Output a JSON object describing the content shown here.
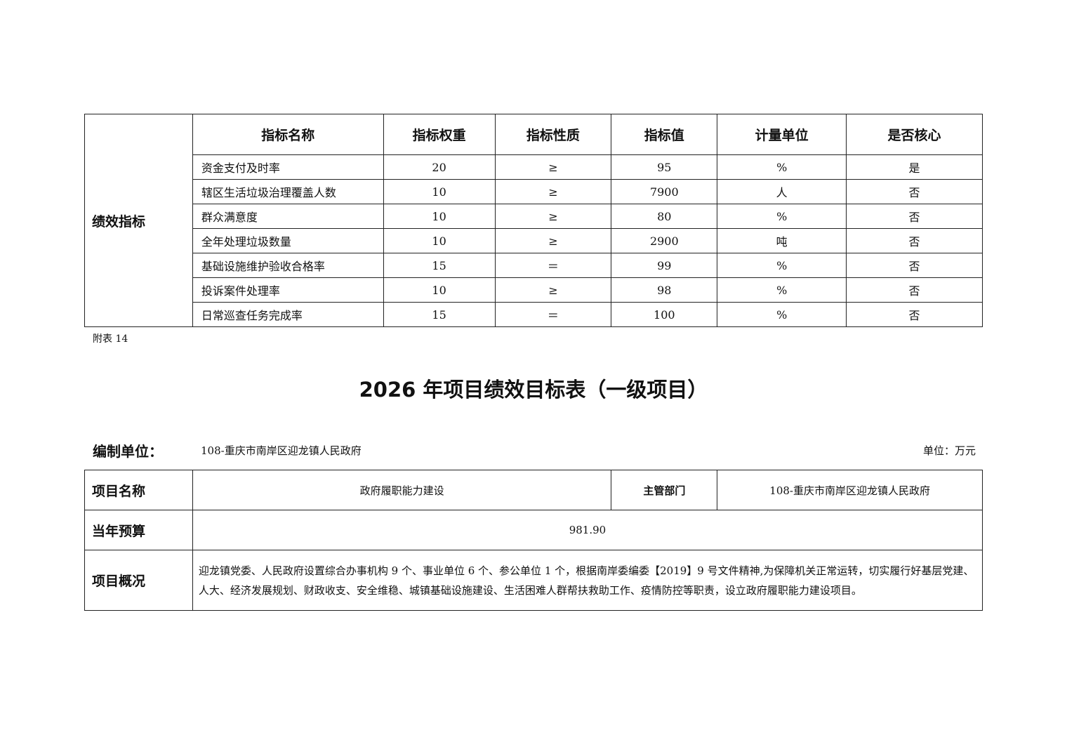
{
  "indicator_table": {
    "section_label": "绩效指标",
    "headers": [
      "指标名称",
      "指标权重",
      "指标性质",
      "指标值",
      "计量单位",
      "是否核心"
    ],
    "rows": [
      [
        "资金支付及时率",
        "20",
        "≥",
        "95",
        "%",
        "是"
      ],
      [
        "辖区生活垃圾治理覆盖人数",
        "10",
        "≥",
        "7900",
        "人",
        "否"
      ],
      [
        "群众满意度",
        "10",
        "≥",
        "80",
        "%",
        "否"
      ],
      [
        "全年处理垃圾数量",
        "10",
        "≥",
        "2900",
        "吨",
        "否"
      ],
      [
        "基础设施维护验收合格率",
        "15",
        "＝",
        "99",
        "%",
        "否"
      ],
      [
        "投诉案件处理率",
        "10",
        "≥",
        "98",
        "%",
        "否"
      ],
      [
        "日常巡查任务完成率",
        "15",
        "＝",
        "100",
        "%",
        "否"
      ]
    ]
  },
  "appendix_note": "附表 14",
  "title": "2026 年项目绩效目标表（一级项目）",
  "org_label": "编制单位：",
  "org_value": "108-重庆市南岸区迎龙镇人民政府",
  "money_unit": "单位：万元",
  "project": {
    "name_label": "项目名称",
    "name_value": "政府履职能力建设",
    "dept_label": "主管部门",
    "dept_value": "108-重庆市南岸区迎龙镇人民政府",
    "budget_label": "当年预算",
    "budget_value": "981.90",
    "overview_label": "项目概况",
    "overview_value": "迎龙镇党委、人民政府设置综合办事机构 9 个、事业单位 6 个、参公单位 1 个，根据南岸委编委【2019】9 号文件精神,为保障机关正常运转，切实履行好基层党建、人大、经济发展规划、财政收支、安全维稳、城镇基础设施建设、生活困难人群帮扶救助工作、疫情防控等职责，设立政府履职能力建设项目。"
  }
}
